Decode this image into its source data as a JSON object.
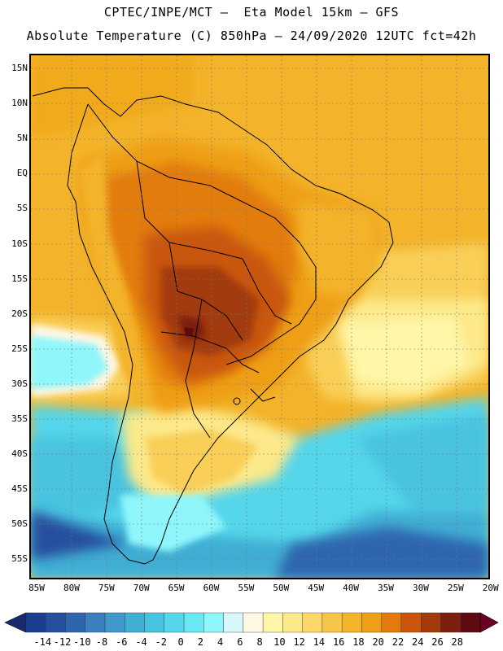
{
  "title_line1": "CPTEC/INPE/MCT –  Eta Model 15km – GFS",
  "title_line2": "Absolute Temperature (C) 850hPa – 24/09/2020 12UTC fct=42h",
  "lat_labels": [
    "15N",
    "10N",
    "5N",
    "EQ",
    "5S",
    "10S",
    "15S",
    "20S",
    "25S",
    "30S",
    "35S",
    "40S",
    "45S",
    "50S",
    "55S"
  ],
  "lon_labels": [
    "85W",
    "80W",
    "75W",
    "70W",
    "65W",
    "60W",
    "55W",
    "50W",
    "45W",
    "40W",
    "35W",
    "30W",
    "25W",
    "20W"
  ],
  "colorbar": {
    "ticks": [
      "-14",
      "-12",
      "-10",
      "-8",
      "-6",
      "-4",
      "-2",
      "0",
      "2",
      "4",
      "6",
      "8",
      "10",
      "12",
      "14",
      "16",
      "18",
      "20",
      "22",
      "24",
      "26",
      "28"
    ],
    "colors": [
      "#1b3d8f",
      "#26509e",
      "#2e66ae",
      "#3b7fbe",
      "#3f98c9",
      "#41aed4",
      "#48c3df",
      "#55d6ea",
      "#6ae8f3",
      "#8ff6fb",
      "#d8f7fb",
      "#fdf7e4",
      "#fff6a8",
      "#fde98a",
      "#fcd86a",
      "#f7c54a",
      "#f3b32a",
      "#ee9f18",
      "#e27b0c",
      "#c9560c",
      "#a23a0c",
      "#7e1e10",
      "#5e0a10"
    ],
    "under_color": "#1b2a6e",
    "over_color": "#6b0024"
  }
}
